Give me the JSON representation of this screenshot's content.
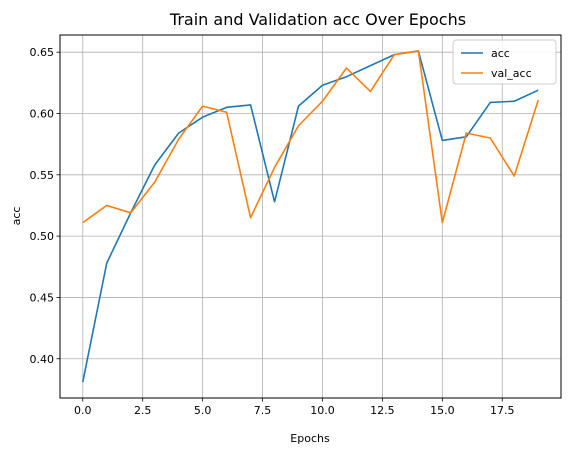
{
  "chart_data": {
    "type": "line",
    "title": "Train and Validation acc Over Epochs",
    "xlabel": "Epochs",
    "ylabel": "acc",
    "x": [
      0,
      1,
      2,
      3,
      4,
      5,
      6,
      7,
      8,
      9,
      10,
      11,
      12,
      13,
      14,
      15,
      16,
      17,
      18,
      19
    ],
    "series": [
      {
        "name": "acc",
        "color": "#1f77b4",
        "values": [
          0.381,
          0.478,
          0.519,
          0.558,
          0.584,
          0.597,
          0.605,
          0.607,
          0.528,
          0.606,
          0.623,
          0.63,
          0.639,
          0.648,
          0.651,
          0.578,
          0.581,
          0.609,
          0.61,
          0.619
        ]
      },
      {
        "name": "val_acc",
        "color": "#ff7f0e",
        "values": [
          0.511,
          0.525,
          0.519,
          0.544,
          0.579,
          0.606,
          0.601,
          0.515,
          0.556,
          0.59,
          0.61,
          0.637,
          0.618,
          0.648,
          0.651,
          0.511,
          0.584,
          0.58,
          0.549,
          0.611
        ]
      }
    ],
    "xlim": [
      -0.95,
      19.95
    ],
    "ylim": [
      0.368,
      0.664
    ],
    "xticks": [
      0.0,
      2.5,
      5.0,
      7.5,
      10.0,
      12.5,
      15.0,
      17.5
    ],
    "xtick_labels": [
      "0.0",
      "2.5",
      "5.0",
      "7.5",
      "10.0",
      "12.5",
      "15.0",
      "17.5"
    ],
    "yticks": [
      0.4,
      0.45,
      0.5,
      0.55,
      0.6,
      0.65
    ],
    "ytick_labels": [
      "0.40",
      "0.45",
      "0.50",
      "0.55",
      "0.60",
      "0.65"
    ],
    "grid": true,
    "legend_position": "top-right"
  }
}
